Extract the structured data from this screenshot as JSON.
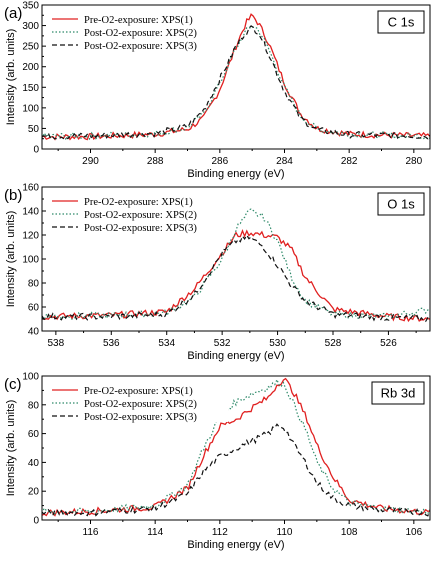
{
  "legend_entries": [
    {
      "label": "Pre-O2-exposure: XPS(1)",
      "color": "#e02020",
      "dash": "solid"
    },
    {
      "label": "Post-O2-exposure: XPS(2)",
      "color": "#2f8a6a",
      "dash": "dotted"
    },
    {
      "label": "Post-O2-exposure: XPS(3)",
      "color": "#111111",
      "dash": "dashed"
    }
  ],
  "chart_data": [
    {
      "type": "line",
      "panel": "(a)",
      "core_level": "C 1s",
      "xlabel": "Binding energy (eV)",
      "ylabel": "Intensity (arb. units)",
      "xlim": [
        291.5,
        279.5
      ],
      "ylim": [
        0,
        350
      ],
      "xticks": [
        290,
        288,
        286,
        284,
        282,
        280
      ],
      "yticks": [
        0,
        50,
        100,
        150,
        200,
        250,
        300,
        350
      ],
      "peak": {
        "center": 285.0,
        "width": 0.9,
        "baseline": 32
      },
      "series": [
        {
          "name": "Pre-O2-exposure: XPS(1)",
          "x": [
            291.5,
            290,
            288,
            287,
            286.5,
            286,
            285.5,
            285.2,
            285.0,
            284.8,
            284.5,
            284,
            283.5,
            283,
            282,
            280,
            279.5
          ],
          "values": [
            30,
            30,
            36,
            48,
            75,
            145,
            250,
            305,
            325,
            305,
            260,
            160,
            85,
            50,
            36,
            32,
            31
          ]
        },
        {
          "name": "Post-O2-exposure: XPS(2)",
          "x": [
            291.5,
            290,
            288,
            287,
            286.5,
            286,
            285.5,
            285.2,
            285.0,
            284.8,
            284.5,
            284,
            283.5,
            283,
            282,
            280,
            279.5
          ],
          "values": [
            31,
            32,
            37,
            52,
            85,
            160,
            245,
            285,
            300,
            290,
            245,
            150,
            80,
            48,
            36,
            32,
            31
          ]
        },
        {
          "name": "Post-O2-exposure: XPS(3)",
          "x": [
            291.5,
            290,
            288,
            287,
            286.5,
            286,
            285.5,
            285.2,
            285.0,
            284.8,
            284.5,
            284,
            283.5,
            283,
            282,
            280,
            279.5
          ],
          "values": [
            31,
            32,
            38,
            55,
            95,
            170,
            250,
            285,
            295,
            285,
            235,
            140,
            75,
            46,
            35,
            32,
            31
          ]
        }
      ]
    },
    {
      "type": "line",
      "panel": "(b)",
      "core_level": "O 1s",
      "xlabel": "Binding energy (eV)",
      "ylabel": "Intensity (arb. units)",
      "xlim": [
        538.5,
        524.5
      ],
      "ylim": [
        40,
        160
      ],
      "xticks": [
        538,
        536,
        534,
        532,
        530,
        528,
        526
      ],
      "yticks": [
        40,
        60,
        80,
        100,
        120,
        140,
        160
      ],
      "series": [
        {
          "name": "Pre-O2-exposure: XPS(1)",
          "x": [
            538.5,
            536,
            534,
            533,
            532,
            531.5,
            531,
            530.5,
            530,
            529.5,
            529,
            528,
            526,
            524.5
          ],
          "values": [
            52,
            53,
            56,
            75,
            105,
            120,
            122,
            120,
            118,
            108,
            85,
            58,
            52,
            50
          ]
        },
        {
          "name": "Post-O2-exposure: XPS(2)",
          "x": [
            538.5,
            536,
            534,
            533,
            532,
            531.5,
            531,
            530.5,
            530,
            529.5,
            529,
            528,
            526,
            524.5
          ],
          "values": [
            52,
            53,
            55,
            68,
            100,
            125,
            140,
            135,
            115,
            85,
            65,
            54,
            52,
            58
          ]
        },
        {
          "name": "Post-O2-exposure: XPS(3)",
          "x": [
            538.5,
            536,
            534,
            533,
            532,
            531.5,
            531,
            530.5,
            530,
            529.5,
            529,
            528,
            526,
            524.5
          ],
          "values": [
            52,
            52,
            54,
            70,
            105,
            115,
            118,
            110,
            95,
            78,
            65,
            54,
            51,
            50
          ]
        }
      ]
    },
    {
      "type": "line",
      "panel": "(c)",
      "core_level": "Rb 3d",
      "xlabel": "Binding energy (eV)",
      "ylabel": "Intensity (arb. units)",
      "xlim": [
        117.5,
        105.5
      ],
      "ylim": [
        0,
        100
      ],
      "xticks": [
        116,
        114,
        112,
        110,
        108,
        106
      ],
      "yticks": [
        0,
        20,
        40,
        60,
        80,
        100
      ],
      "series": [
        {
          "name": "Pre-O2-exposure: XPS(1)",
          "x": [
            117.5,
            116,
            114,
            113,
            112.5,
            112,
            111.5,
            111,
            110.5,
            110.2,
            110,
            109.7,
            109.3,
            109,
            108.5,
            108,
            107,
            106,
            105.5
          ],
          "values": [
            5,
            6,
            9,
            22,
            45,
            65,
            70,
            78,
            85,
            95,
            98,
            88,
            70,
            52,
            30,
            14,
            8,
            6,
            5
          ]
        },
        {
          "name": "Post-O2-exposure: XPS(2)",
          "x": [
            117.5,
            116,
            114,
            113,
            112.5,
            112,
            111.5,
            111,
            110.5,
            110.2,
            110,
            109.7,
            109.3,
            109,
            108.5,
            108,
            107,
            106,
            105.5
          ],
          "values": [
            6,
            6,
            10,
            24,
            50,
            72,
            82,
            88,
            92,
            96,
            94,
            80,
            60,
            40,
            22,
            12,
            8,
            6,
            6
          ]
        },
        {
          "name": "Post-O2-exposure: XPS(3)",
          "x": [
            117.5,
            116,
            114,
            113,
            112.5,
            112,
            111.5,
            111,
            110.5,
            110.2,
            110,
            109.7,
            109.3,
            109,
            108.5,
            108,
            107,
            106,
            105.5
          ],
          "values": [
            5,
            5,
            8,
            18,
            34,
            44,
            50,
            55,
            60,
            66,
            64,
            52,
            38,
            26,
            15,
            10,
            7,
            6,
            5
          ]
        }
      ]
    }
  ]
}
